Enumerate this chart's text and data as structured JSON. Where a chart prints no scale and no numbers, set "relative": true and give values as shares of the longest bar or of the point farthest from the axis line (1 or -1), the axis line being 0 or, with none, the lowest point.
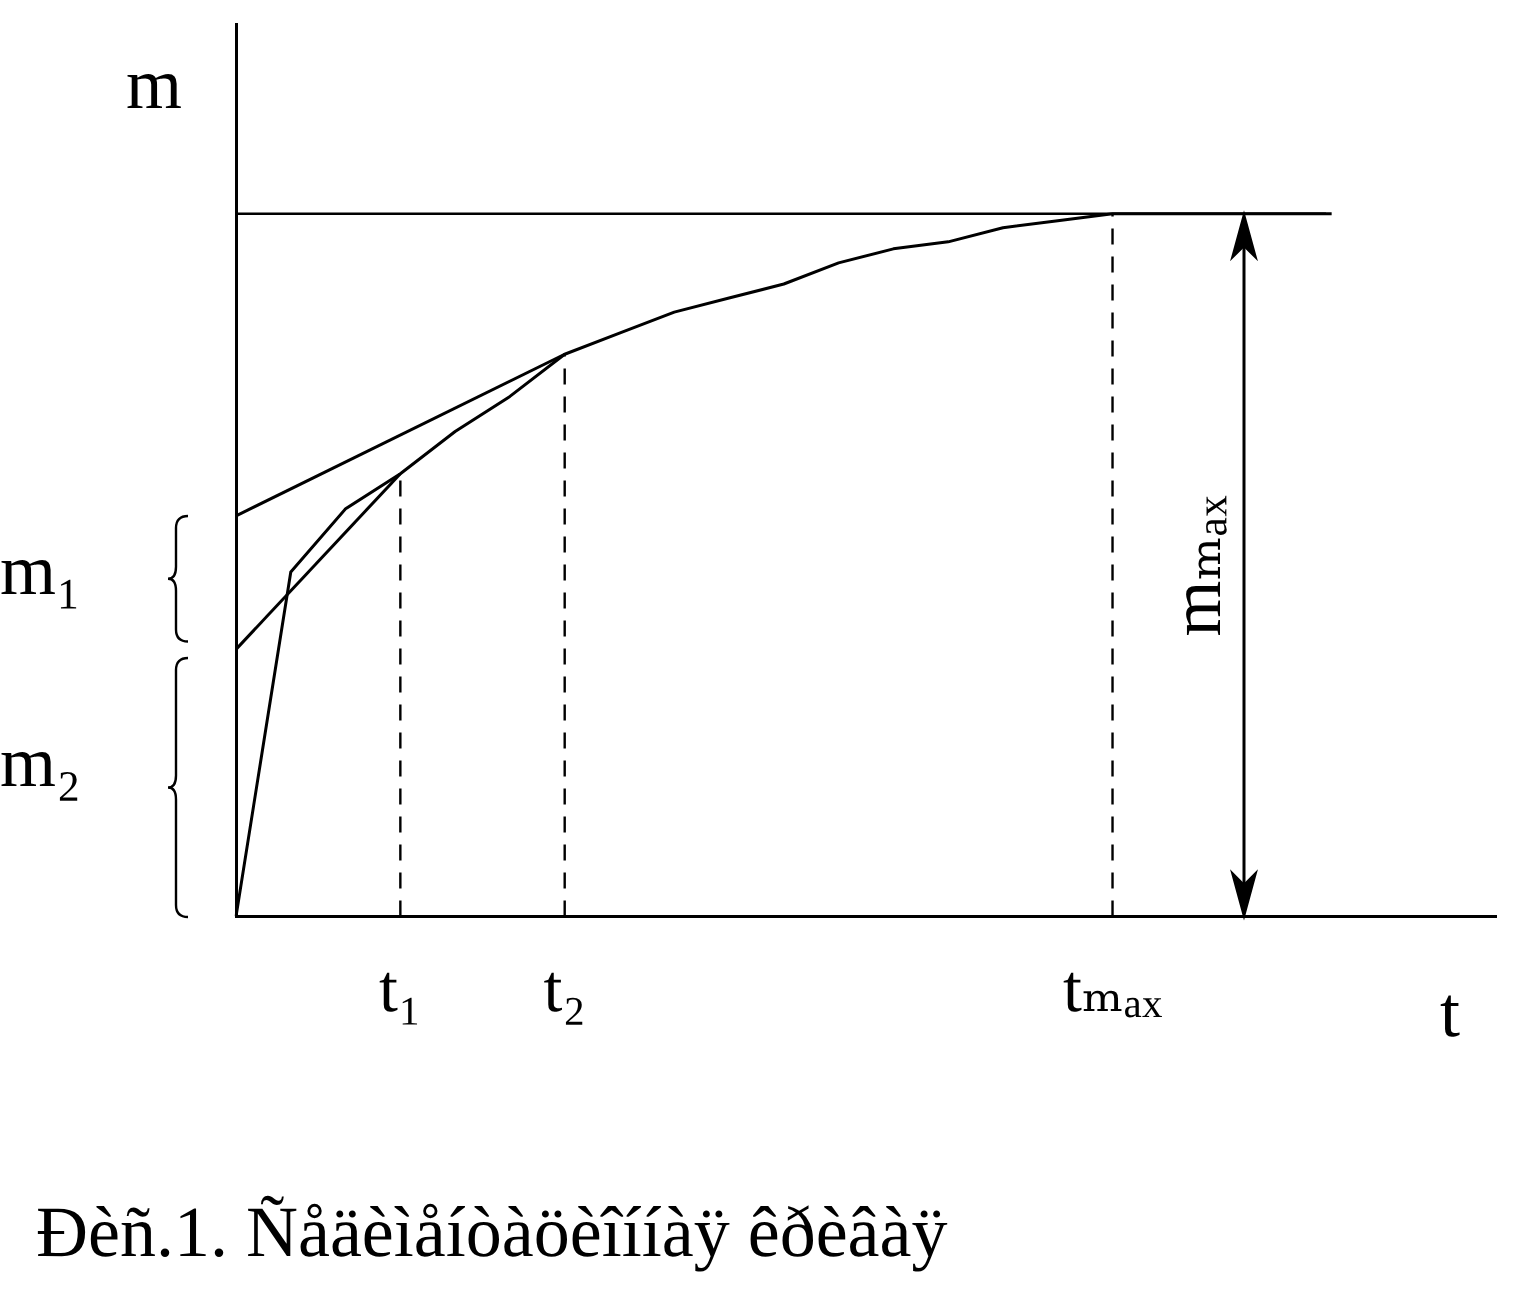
{
  "chart_data": {
    "type": "line",
    "relative": true,
    "ylabel": "m",
    "xlabel": "t",
    "legend": false,
    "grid": false,
    "marker": "none",
    "line_style": "solid",
    "categories": [
      null,
      null,
      null,
      "t₁",
      null,
      null,
      "t₂",
      null,
      null,
      null,
      null,
      null,
      null,
      null,
      null,
      null,
      "tₘₐₓ",
      null,
      null,
      null,
      null,
      null,
      null,
      null
    ],
    "series": [
      {
        "color": "#000000",
        "values": [
          0,
          0.49,
          0.58,
          0.63,
          0.69,
          0.74,
          0.8,
          0.83,
          0.86,
          0.88,
          0.9,
          0.93,
          0.95,
          0.96,
          0.98,
          0.99,
          1,
          1,
          1,
          1,
          1,
          null,
          null,
          null
        ]
      },
      {
        "color": "#000000",
        "values": [
          0.57,
          null,
          null,
          null,
          null,
          null,
          0.8,
          null,
          null,
          null,
          null,
          null,
          null,
          null,
          null,
          null,
          null,
          null,
          null,
          null,
          null,
          null,
          null,
          null
        ]
      },
      {
        "color": "#000000",
        "values": [
          0.38,
          null,
          null,
          0.63,
          null,
          null,
          null,
          null,
          null,
          null,
          null,
          null,
          null,
          null,
          null,
          null,
          null,
          null,
          null,
          null,
          null,
          null,
          null,
          null
        ]
      }
    ],
    "ref_lines": [
      {
        "axis": "y",
        "value": 1,
        "color": "#000000",
        "line_style": "solid"
      },
      {
        "axis": "x",
        "value": "t₁",
        "color": "#000000",
        "line_style": "dashed"
      },
      {
        "axis": "x",
        "value": "t₂",
        "color": "#000000",
        "line_style": "dashed"
      },
      {
        "axis": "x",
        "value": "tₘₐₓ",
        "color": "#000000",
        "line_style": "dashed"
      }
    ],
    "annotations": [
      "m₁",
      "m₂",
      "mₘₐₓ",
      "Ðèñ.1. Ñåäèìåíòàöèîííàÿ êðèâàÿ"
    ]
  }
}
